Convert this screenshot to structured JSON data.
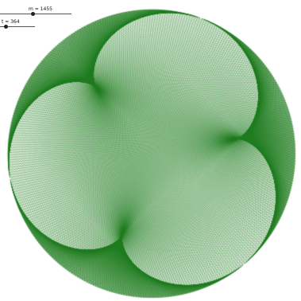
{
  "sliders": {
    "m": {
      "label": "m = 1455",
      "value": 1455,
      "fraction": 0.45
    },
    "t": {
      "label": "t = 364",
      "value": 364,
      "fraction": 0.15
    }
  },
  "figure": {
    "line_color": "#1e7a1e",
    "background": "#ffffff"
  }
}
